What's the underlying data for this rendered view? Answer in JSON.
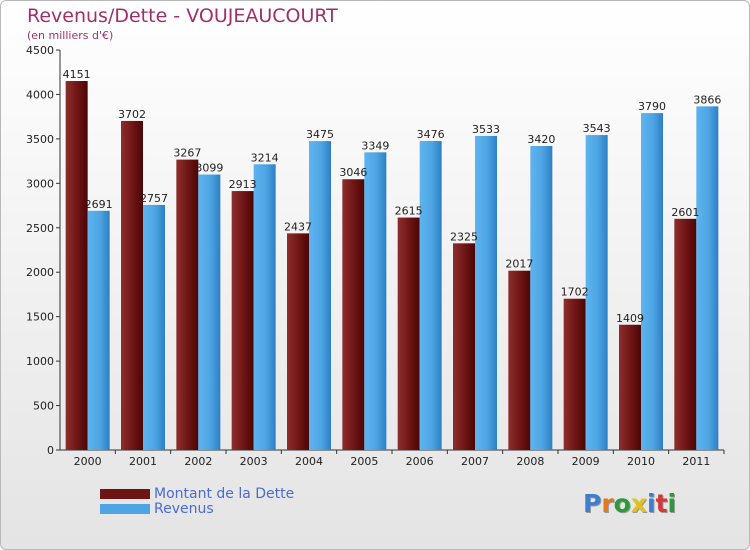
{
  "title": "Revenus/Dette - VOUJEAUCOURT",
  "subtitle": "(en milliers d'€)",
  "logo_text": "Proxiti",
  "colors": {
    "dette": "#6e1414",
    "revenus": "#4ea5e3",
    "title": "#a0306a",
    "legend_text": "#4a6cd4"
  },
  "legend": [
    {
      "label": "Montant de la Dette",
      "color": "#6e1414"
    },
    {
      "label": "Revenus",
      "color": "#4ea5e3"
    }
  ],
  "chart_data": {
    "type": "bar",
    "title": "Revenus/Dette - VOUJEAUCOURT",
    "subtitle": "(en milliers d'€)",
    "categories": [
      "2000",
      "2001",
      "2002",
      "2003",
      "2004",
      "2005",
      "2006",
      "2007",
      "2008",
      "2009",
      "2010",
      "2011"
    ],
    "series": [
      {
        "name": "Montant de la Dette",
        "values": [
          4151,
          3702,
          3267,
          2913,
          2437,
          3046,
          2615,
          2325,
          2017,
          1702,
          1409,
          2601
        ]
      },
      {
        "name": "Revenus",
        "values": [
          2691,
          2757,
          3099,
          3214,
          3475,
          3349,
          3476,
          3533,
          3420,
          3543,
          3790,
          3866
        ]
      }
    ],
    "ylim": [
      0,
      4500
    ],
    "yticks": [
      0,
      500,
      1000,
      1500,
      2000,
      2500,
      3000,
      3500,
      4000,
      4500
    ],
    "grid": false,
    "legend_position": "bottom-left"
  }
}
